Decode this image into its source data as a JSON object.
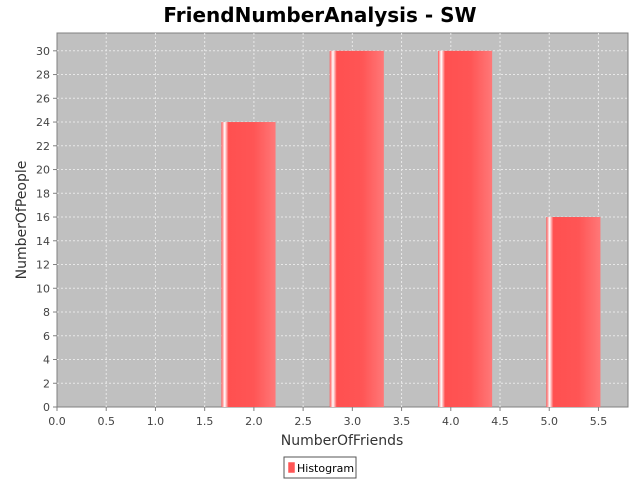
{
  "chart_data": {
    "type": "bar",
    "title": "FriendNumberAnalysis - SW",
    "xlabel": "NumberOfFriends",
    "ylabel": "NumberOfPeople",
    "xlim": [
      0,
      5.8
    ],
    "ylim": [
      0,
      31.5
    ],
    "x_ticks": [
      0.0,
      0.5,
      1.0,
      1.5,
      2.0,
      2.5,
      3.0,
      3.5,
      4.0,
      4.5,
      5.0,
      5.5
    ],
    "x_tick_labels": [
      "0.0",
      "0.5",
      "1.0",
      "1.5",
      "2.0",
      "2.5",
      "3.0",
      "3.5",
      "4.0",
      "4.5",
      "5.0",
      "5.5"
    ],
    "y_ticks": [
      0,
      2,
      4,
      6,
      8,
      10,
      12,
      14,
      16,
      18,
      20,
      22,
      24,
      26,
      28,
      30
    ],
    "y_tick_labels": [
      "0",
      "2",
      "4",
      "6",
      "8",
      "10",
      "12",
      "14",
      "16",
      "18",
      "20",
      "22",
      "24",
      "26",
      "28",
      "30"
    ],
    "grid": true,
    "bar_width": 0.55,
    "series": [
      {
        "name": "Histogram",
        "x": [
          1.67,
          2.77,
          3.87,
          4.97
        ],
        "values": [
          24,
          30,
          30,
          16
        ]
      }
    ],
    "legend": {
      "position": "bottom-center",
      "entries": [
        "Histogram"
      ]
    },
    "colors": {
      "plot_background": "#c0c0c0",
      "grid": "#e8e8e8",
      "bar": "#ff5555",
      "bar_highlight": "#ffffff",
      "bar_light": "#ff7777"
    }
  }
}
